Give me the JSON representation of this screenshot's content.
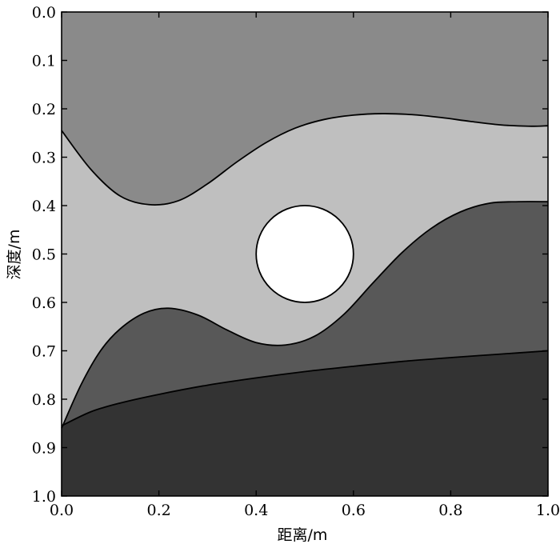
{
  "chart_data": {
    "type": "area",
    "xlabel": "距离/m",
    "ylabel": "深度/m",
    "xlim": [
      0.0,
      1.0
    ],
    "ylim": [
      1.0,
      0.0
    ],
    "y_inverted": true,
    "grid": false,
    "xticks": [
      "0.0",
      "0.2",
      "0.4",
      "0.6",
      "0.8",
      "1.0"
    ],
    "yticks": [
      "0.0",
      "0.1",
      "0.2",
      "0.3",
      "0.4",
      "0.5",
      "0.6",
      "0.7",
      "0.8",
      "0.9",
      "1.0"
    ],
    "boundaries": [
      {
        "id": "upper",
        "points": [
          [
            0.0,
            0.245
          ],
          [
            0.06,
            0.325
          ],
          [
            0.12,
            0.38
          ],
          [
            0.18,
            0.398
          ],
          [
            0.24,
            0.39
          ],
          [
            0.3,
            0.355
          ],
          [
            0.36,
            0.31
          ],
          [
            0.42,
            0.27
          ],
          [
            0.48,
            0.24
          ],
          [
            0.54,
            0.222
          ],
          [
            0.6,
            0.213
          ],
          [
            0.66,
            0.21
          ],
          [
            0.72,
            0.212
          ],
          [
            0.78,
            0.218
          ],
          [
            0.84,
            0.226
          ],
          [
            0.9,
            0.233
          ],
          [
            0.96,
            0.236
          ],
          [
            1.0,
            0.235
          ]
        ]
      },
      {
        "id": "middle",
        "points": [
          [
            0.0,
            0.86
          ],
          [
            0.04,
            0.77
          ],
          [
            0.08,
            0.7
          ],
          [
            0.12,
            0.655
          ],
          [
            0.17,
            0.622
          ],
          [
            0.22,
            0.612
          ],
          [
            0.28,
            0.626
          ],
          [
            0.34,
            0.657
          ],
          [
            0.4,
            0.683
          ],
          [
            0.46,
            0.688
          ],
          [
            0.52,
            0.67
          ],
          [
            0.58,
            0.625
          ],
          [
            0.64,
            0.56
          ],
          [
            0.7,
            0.497
          ],
          [
            0.76,
            0.447
          ],
          [
            0.82,
            0.413
          ],
          [
            0.88,
            0.395
          ],
          [
            0.94,
            0.392
          ],
          [
            1.0,
            0.392
          ]
        ]
      },
      {
        "id": "lower",
        "points": [
          [
            0.0,
            0.855
          ],
          [
            0.06,
            0.826
          ],
          [
            0.12,
            0.808
          ],
          [
            0.2,
            0.79
          ],
          [
            0.3,
            0.771
          ],
          [
            0.4,
            0.756
          ],
          [
            0.5,
            0.743
          ],
          [
            0.6,
            0.732
          ],
          [
            0.7,
            0.722
          ],
          [
            0.8,
            0.714
          ],
          [
            0.9,
            0.707
          ],
          [
            1.0,
            0.7
          ]
        ]
      }
    ],
    "layers": [
      {
        "id": "layer-1",
        "color": "#8a8a8a"
      },
      {
        "id": "layer-2",
        "color": "#bfbfbf"
      },
      {
        "id": "layer-3",
        "color": "#585858"
      },
      {
        "id": "layer-4",
        "color": "#333333"
      }
    ],
    "void": {
      "cx": 0.5,
      "cy": 0.5,
      "r": 0.1,
      "color": "#ffffff"
    }
  }
}
